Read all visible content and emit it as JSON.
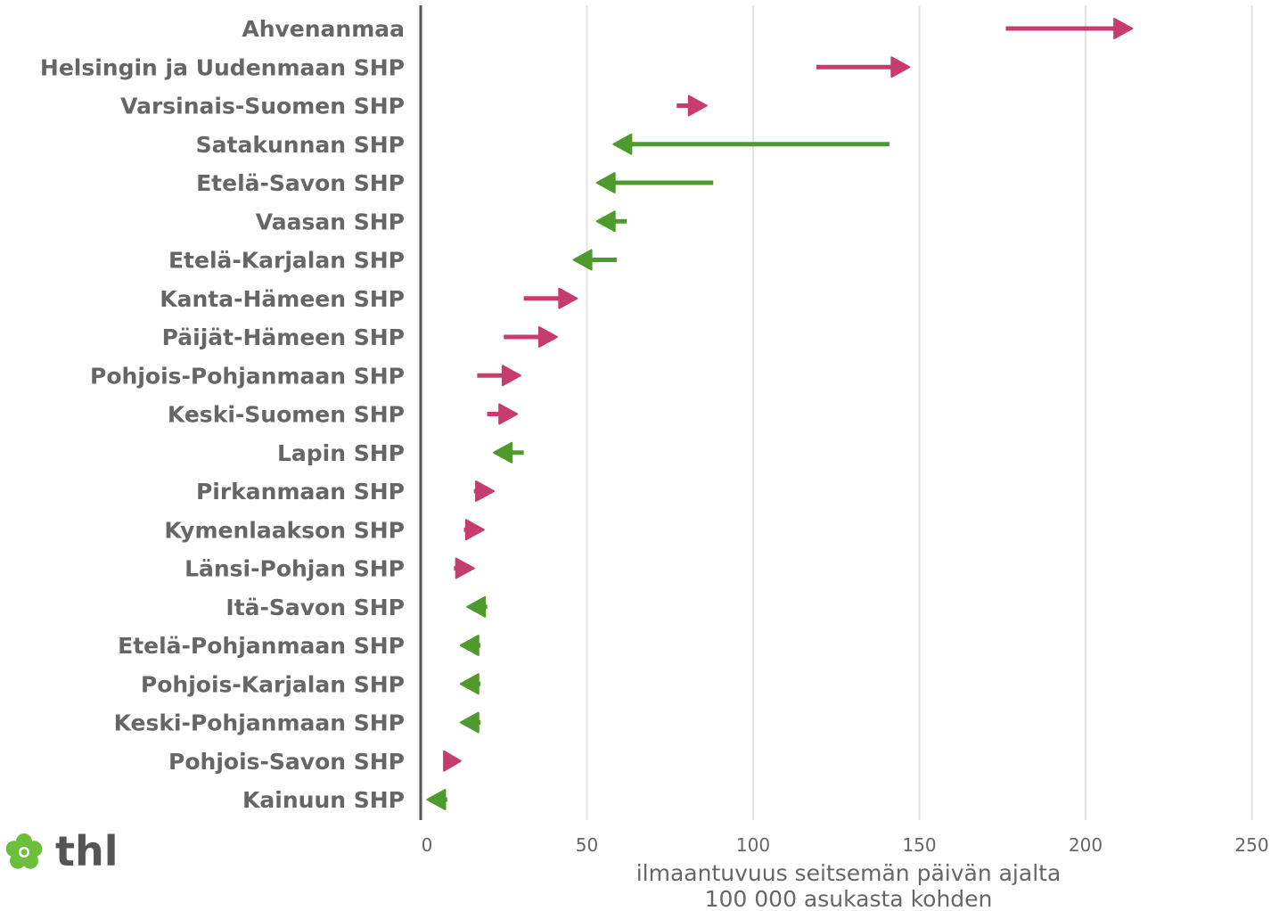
{
  "chart_data": {
    "type": "arrow",
    "categories": [
      "Ahvenanmaa",
      "Helsingin ja Uudenmaan SHP",
      "Varsinais-Suomen SHP",
      "Satakunnan SHP",
      "Etelä-Savon SHP",
      "Vaasan SHP",
      "Etelä-Karjalan SHP",
      "Kanta-Hämeen SHP",
      "Päijät-Hämeen SHP",
      "Pohjois-Pohjanmaan SHP",
      "Keski-Suomen SHP",
      "Lapin SHP",
      "Pirkanmaan SHP",
      "Kymenlaakson SHP",
      "Länsi-Pohjan SHP",
      "Itä-Savon SHP",
      "Etelä-Pohjanmaan SHP",
      "Pohjois-Karjalan SHP",
      "Keski-Pohjanmaan SHP",
      "Pohjois-Savon SHP",
      "Kainuun SHP"
    ],
    "start": [
      176,
      119,
      77,
      141,
      88,
      62,
      59,
      31,
      25,
      17,
      20,
      31,
      16,
      13,
      10,
      20,
      18,
      18,
      18,
      7,
      8
    ],
    "end": [
      214,
      147,
      86,
      58,
      53,
      53,
      46,
      47,
      41,
      30,
      29,
      22,
      22,
      19,
      16,
      14,
      12,
      12,
      12,
      12,
      2
    ],
    "xticks": [
      0,
      50,
      100,
      150,
      200,
      250
    ],
    "xlim": [
      0,
      255
    ],
    "xlabel_lines": [
      "ilmaantuvuus seitsemän päivän ajalta",
      "100 000 asukasta kohden"
    ],
    "colors": {
      "increase": "#c73c6e",
      "decrease": "#4f9a2d",
      "grid": "#e2e2e2",
      "axis": "#555555",
      "text": "#666666"
    },
    "grid": true
  },
  "logo": {
    "text": "thl",
    "icon": "thl-flower-icon",
    "color": "#6cbf3a",
    "text_color": "#555555"
  }
}
